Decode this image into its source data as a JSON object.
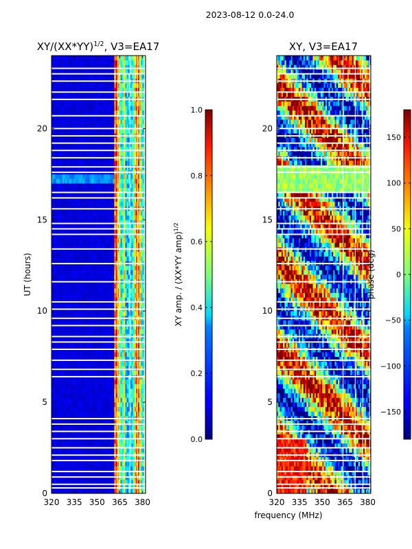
{
  "figure": {
    "suptitle": "2023-08-12 0.0-24.0",
    "xlabel_shared": "frequency (MHz)"
  },
  "chart_data": [
    {
      "type": "heatmap",
      "title": "XY/(XX*YY)^1/2, V3=EA17",
      "title_main": "XY/(XX*YY)",
      "title_exp": "1/2",
      "title_tail": ", V3=EA17",
      "ylabel": "UT (hours)",
      "xlim": [
        320,
        382
      ],
      "ylim": [
        0,
        24
      ],
      "xticks": [
        "320",
        "335",
        "350",
        "365",
        "380"
      ],
      "xtick_values": [
        320,
        335,
        350,
        365,
        380
      ],
      "yticks": [
        "0",
        "5",
        "10",
        "15",
        "20"
      ],
      "ytick_values": [
        0,
        5,
        10,
        15,
        20
      ],
      "colorbar": {
        "label": "XY amp. / (XX*YY amp)^1/2",
        "label_main": "XY amp. / (XX*YY amp)",
        "label_exp": "1/2",
        "range": [
          0.0,
          1.0
        ],
        "ticks": [
          "0.0",
          "0.2",
          "0.4",
          "0.6",
          "0.8",
          "1.0"
        ],
        "tick_values": [
          0.0,
          0.2,
          0.4,
          0.6,
          0.8,
          1.0
        ]
      },
      "gap_hours": [
        0.3,
        0.5,
        0.9,
        1.2,
        1.8,
        2.1,
        2.5,
        3.0,
        3.4,
        3.8,
        4.1,
        6.4,
        6.8,
        7.3,
        7.9,
        8.3,
        8.6,
        9.2,
        9.6,
        10.1,
        10.5,
        11.6,
        12.6,
        13.4,
        14.2,
        14.5,
        14.8,
        15.6,
        16.2,
        16.5,
        17.6,
        17.9,
        18.4,
        18.8,
        19.2,
        19.6,
        20.0,
        20.7,
        21.6,
        22.0,
        22.6,
        23.0,
        23.3
      ]
    },
    {
      "type": "heatmap",
      "title": "XY, V3=EA17",
      "xlim": [
        320,
        382
      ],
      "ylim": [
        0,
        24
      ],
      "xticks": [
        "320",
        "335",
        "350",
        "365",
        "380"
      ],
      "xtick_values": [
        320,
        335,
        350,
        365,
        380
      ],
      "yticks": [
        "0",
        "5",
        "10",
        "15",
        "20"
      ],
      "ytick_values": [
        0,
        5,
        10,
        15,
        20
      ],
      "colorbar": {
        "label": "phase (deg)",
        "range": [
          -180,
          180
        ],
        "ticks": [
          "−150",
          "−100",
          "−50",
          "0",
          "50",
          "100",
          "150"
        ],
        "tick_values": [
          -150,
          -100,
          -50,
          0,
          50,
          100,
          150
        ]
      },
      "gap_hours": [
        0.3,
        0.5,
        0.9,
        1.2,
        1.8,
        2.1,
        2.5,
        3.0,
        3.4,
        3.8,
        4.1,
        6.4,
        6.8,
        7.3,
        7.9,
        8.3,
        8.6,
        9.2,
        9.6,
        10.1,
        10.5,
        11.6,
        12.6,
        13.4,
        14.2,
        14.5,
        14.8,
        15.6,
        16.2,
        16.5,
        17.6,
        17.9,
        18.4,
        18.8,
        19.2,
        19.6,
        20.0,
        20.7,
        21.6,
        22.0,
        22.6,
        23.0,
        23.3
      ]
    }
  ]
}
